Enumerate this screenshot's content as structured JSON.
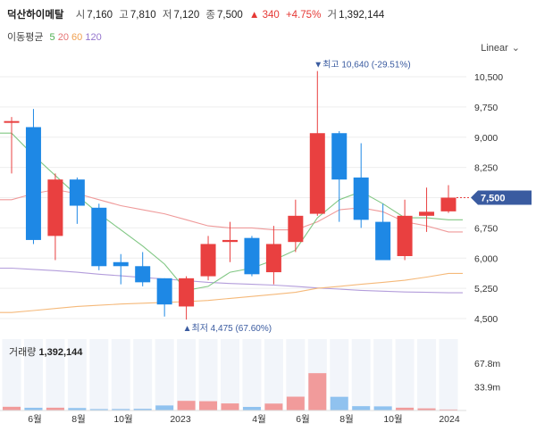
{
  "header": {
    "name": "덕산하이메탈",
    "open_label": "시",
    "open": "7,160",
    "high_label": "고",
    "high": "7,810",
    "low_label": "저",
    "low": "7,120",
    "close_label": "종",
    "close": "7,500",
    "change": "▲ 340",
    "change_pct": "+4.75%",
    "volume_label": "거",
    "volume": "1,392,144"
  },
  "ma_legend": {
    "label": "이동평균",
    "periods": [
      {
        "text": "5",
        "color": "#4caf50"
      },
      {
        "text": "20",
        "color": "#e57373"
      },
      {
        "text": "60",
        "color": "#f0a050"
      },
      {
        "text": "120",
        "color": "#9575cd"
      }
    ]
  },
  "scale_selector": {
    "label": "Linear",
    "icon": "chevron-down-icon"
  },
  "colors": {
    "up": "#e94040",
    "down": "#1e88e5",
    "up_vol": "#f19b9b",
    "down_vol": "#90c2ef",
    "vol_bg": "#f2f5fa",
    "badge": "#3a5ba0"
  },
  "chart_data": {
    "type": "candlestick",
    "y_ticks": [
      "10,500",
      "9,750",
      "9,000",
      "8,250",
      "7,500",
      "6,750",
      "6,000",
      "5,250",
      "4,500"
    ],
    "ylim": [
      4400,
      10800
    ],
    "x_labels": [
      "6월",
      "8월",
      "10월",
      "2023",
      "4월",
      "6월",
      "8월",
      "10월",
      "2024"
    ],
    "candles": [
      {
        "o": 9400,
        "h": 9500,
        "l": 8100,
        "c": 9400
      },
      {
        "o": 9250,
        "h": 9700,
        "l": 6350,
        "c": 6450
      },
      {
        "o": 6550,
        "h": 8100,
        "l": 5950,
        "c": 7950
      },
      {
        "o": 7950,
        "h": 8000,
        "l": 6850,
        "c": 7300
      },
      {
        "o": 7250,
        "h": 7350,
        "l": 5700,
        "c": 5800
      },
      {
        "o": 5900,
        "h": 6100,
        "l": 5350,
        "c": 5800
      },
      {
        "o": 5800,
        "h": 6150,
        "l": 5300,
        "c": 5400
      },
      {
        "o": 5500,
        "h": 5500,
        "l": 4550,
        "c": 4850
      },
      {
        "o": 4800,
        "h": 5550,
        "l": 4475,
        "c": 5500
      },
      {
        "o": 5550,
        "h": 6550,
        "l": 5450,
        "c": 6350
      },
      {
        "o": 6400,
        "h": 6900,
        "l": 5900,
        "c": 6450
      },
      {
        "o": 6500,
        "h": 6550,
        "l": 5550,
        "c": 5600
      },
      {
        "o": 5650,
        "h": 6800,
        "l": 5350,
        "c": 6350
      },
      {
        "o": 6400,
        "h": 7450,
        "l": 6150,
        "c": 7050
      },
      {
        "o": 7100,
        "h": 10640,
        "l": 7050,
        "c": 9100
      },
      {
        "o": 9100,
        "h": 9150,
        "l": 6900,
        "c": 7950
      },
      {
        "o": 8000,
        "h": 8850,
        "l": 6750,
        "c": 6950
      },
      {
        "o": 6900,
        "h": 7350,
        "l": 5950,
        "c": 5950
      },
      {
        "o": 6050,
        "h": 7450,
        "l": 5950,
        "c": 7050
      },
      {
        "o": 7050,
        "h": 7750,
        "l": 6650,
        "c": 7150
      },
      {
        "o": 7160,
        "h": 7810,
        "l": 7120,
        "c": 7500
      }
    ],
    "volume_values": [
      5.3,
      3.9,
      4.0,
      3.5,
      2.0,
      2.1,
      2.4,
      7.2,
      13.8,
      13.3,
      10.1,
      5.1,
      9.9,
      19.8,
      53.5,
      19.6,
      6.2,
      5.9,
      4.0,
      3.0,
      1.4
    ],
    "volume_ticks": [
      "67.8m",
      "33.9m"
    ],
    "volume_max": 67.8,
    "ma5": [
      9100,
      8550,
      8050,
      7550,
      7100,
      6700,
      6300,
      5850,
      5200,
      5300,
      5650,
      5750,
      5950,
      6200,
      7000,
      7450,
      7650,
      7350,
      7000,
      7000,
      6950
    ],
    "ma20": [
      7450,
      7600,
      7700,
      7600,
      7450,
      7300,
      7200,
      7100,
      6950,
      6800,
      6750,
      6750,
      6700,
      6700,
      6900,
      7200,
      7250,
      7150,
      6900,
      6800,
      6650
    ],
    "ma60": [
      4650,
      4700,
      4750,
      4800,
      4830,
      4860,
      4880,
      4900,
      4920,
      4950,
      5000,
      5050,
      5100,
      5150,
      5250,
      5300,
      5350,
      5400,
      5450,
      5530,
      5620
    ],
    "ma120": [
      5750,
      5720,
      5690,
      5650,
      5600,
      5560,
      5520,
      5480,
      5440,
      5400,
      5370,
      5350,
      5330,
      5300,
      5260,
      5230,
      5200,
      5180,
      5160,
      5150,
      5140
    ],
    "annotations": {
      "high": {
        "text": "▼최고 10,640 (-29.51%)",
        "value": 10640
      },
      "low": {
        "text": "▲최저 4,475 (67.60%)",
        "value": 4475
      }
    },
    "current_price": {
      "text": "7,500",
      "value": 7500
    },
    "volume_label": {
      "label": "거래량",
      "value": "1,392,144"
    }
  }
}
